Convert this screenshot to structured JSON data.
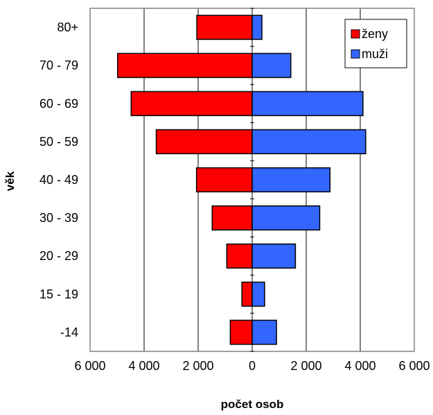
{
  "chart_data": {
    "type": "bar",
    "orientation": "horizontal",
    "stacked_diverging": true,
    "categories": [
      "80+",
      "70 - 79",
      "60 - 69",
      "50 - 59",
      "40 - 49",
      "30 - 39",
      "20 - 29",
      "15 - 19",
      "-14"
    ],
    "series": [
      {
        "name": "ženy",
        "color": "#ff0000",
        "values": [
          2050,
          4980,
          4480,
          3550,
          2060,
          1480,
          940,
          380,
          810
        ]
      },
      {
        "name": "muži",
        "color": "#3366ff",
        "values": [
          360,
          1430,
          4100,
          4200,
          2880,
          2500,
          1600,
          460,
          900
        ]
      }
    ],
    "xlabel": "počet osob",
    "ylabel": "věk",
    "xlim": [
      -6000,
      6000
    ],
    "x_ticks": [
      -6000,
      -4000,
      -2000,
      0,
      2000,
      4000,
      6000
    ],
    "x_tick_labels": [
      "6 000",
      "4 000",
      "2 000",
      "0",
      "2 000",
      "4 000",
      "6 000"
    ],
    "grid": true,
    "legend_position": "top-right"
  }
}
